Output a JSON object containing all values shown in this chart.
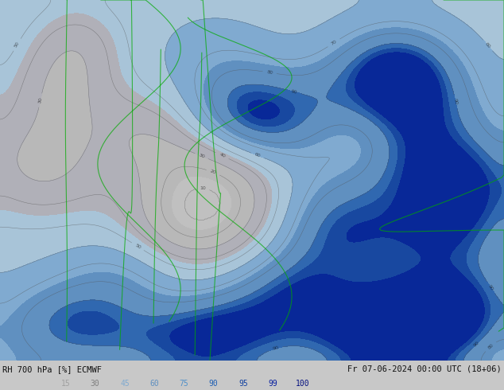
{
  "title_left": "RH 700 hPa [%] ECMWF",
  "title_right": "Fr 07-06-2024 00:00 UTC (18+06)",
  "colorbar_values": [
    15,
    30,
    45,
    60,
    75,
    90,
    95,
    99,
    100
  ],
  "colorbar_label_colors": [
    "#a0a0a0",
    "#808080",
    "#80aad0",
    "#6090c0",
    "#5090c8",
    "#2060b4",
    "#1040a0",
    "#0820a0",
    "#041080"
  ],
  "figsize": [
    6.34,
    4.9
  ],
  "dpi": 100,
  "bottom_bar_color": "#c8c8c8",
  "bottom_text_color": "#101010",
  "map_bg_color": "#b8b8b8",
  "levels": [
    0,
    15,
    30,
    45,
    60,
    75,
    90,
    95,
    99,
    100
  ],
  "fill_colors": [
    "#c0c0c0",
    "#b8b8b8",
    "#b0b0b8",
    "#a8c4d8",
    "#80aad0",
    "#6090c0",
    "#3068b0",
    "#1848a0",
    "#082898"
  ],
  "contour_color": "#505050",
  "green_border_color": "#00aa00",
  "label_color": "#101010"
}
